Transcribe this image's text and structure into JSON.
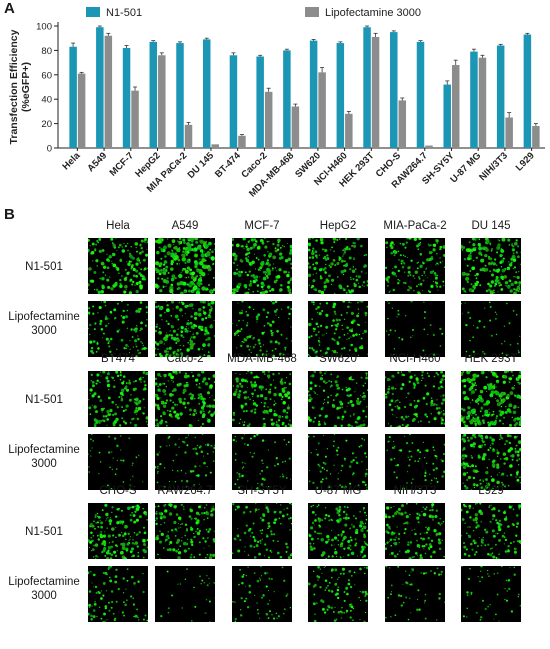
{
  "panel_a_label": "A",
  "panel_b_label": "B",
  "chart_data": {
    "type": "bar",
    "ylabel_line1": "Transfection Efficiency",
    "ylabel_line2": "(%eGFP+)",
    "ylim": [
      0,
      100
    ],
    "yticks": [
      0,
      20,
      40,
      60,
      80,
      100
    ],
    "legend_position": "top",
    "categories": [
      "Hela",
      "A549",
      "MCF-7",
      "HepG2",
      "MIA PaCa-2",
      "DU 145",
      "BT-474",
      "Caco-2",
      "MDA-MB-468",
      "SW620",
      "NCI-H460",
      "HEK 293T",
      "CHO-S",
      "RAW264.7",
      "SH-SY5Y",
      "U-87 MG",
      "NIH/3T3",
      "L929"
    ],
    "series": [
      {
        "name": "N1-501",
        "color": "#1b96b4",
        "values": [
          83,
          99,
          82,
          87,
          86,
          89,
          76,
          75,
          80,
          88,
          86,
          99,
          95,
          87,
          52,
          79,
          84,
          93
        ],
        "errors": [
          3,
          1,
          2,
          1,
          1,
          1,
          2,
          1,
          1,
          1,
          1,
          1,
          1,
          1,
          3,
          2,
          1,
          1
        ]
      },
      {
        "name": "Lipofectamine 3000",
        "color": "#8c8c8c",
        "values": [
          61,
          92,
          47,
          76,
          19,
          3,
          10,
          46,
          34,
          62,
          28,
          91,
          39,
          2,
          68,
          74,
          25,
          18
        ],
        "errors": [
          1,
          2,
          3,
          2,
          2,
          0,
          1,
          3,
          2,
          4,
          2,
          3,
          2,
          0,
          4,
          2,
          4,
          2
        ]
      }
    ]
  },
  "panel_b": {
    "row_labels": {
      "n1": "N1-501",
      "lipo_line1": "Lipofectamine",
      "lipo_line2": "3000"
    },
    "groups": [
      {
        "cells": [
          {
            "name": "Hela",
            "n1": 0.55,
            "lipo": 0.35
          },
          {
            "name": "A549",
            "n1": 0.85,
            "lipo": 0.6
          },
          {
            "name": "MCF-7",
            "n1": 0.6,
            "lipo": 0.3
          },
          {
            "name": "HepG2",
            "n1": 0.5,
            "lipo": 0.4
          },
          {
            "name": "MIA-PaCa-2",
            "n1": 0.45,
            "lipo": 0.05
          },
          {
            "name": "DU 145",
            "n1": 0.65,
            "lipo": 0.08
          }
        ]
      },
      {
        "cells": [
          {
            "name": "BT474",
            "n1": 0.5,
            "lipo": 0.08
          },
          {
            "name": "Caco-2",
            "n1": 0.55,
            "lipo": 0.2
          },
          {
            "name": "MDA-MB-468",
            "n1": 0.5,
            "lipo": 0.15
          },
          {
            "name": "SW620",
            "n1": 0.45,
            "lipo": 0.2
          },
          {
            "name": "NCI-H460",
            "n1": 0.4,
            "lipo": 0.18
          },
          {
            "name": "HEK 293T",
            "n1": 0.75,
            "lipo": 0.55
          }
        ]
      },
      {
        "cells": [
          {
            "name": "CHO-S",
            "n1": 0.55,
            "lipo": 0.25
          },
          {
            "name": "RAW264.7",
            "n1": 0.5,
            "lipo": 0.03
          },
          {
            "name": "SH-SY5Y",
            "n1": 0.3,
            "lipo": 0.15
          },
          {
            "name": "U-87 MG",
            "n1": 0.5,
            "lipo": 0.3
          },
          {
            "name": "NIH/3T3",
            "n1": 0.45,
            "lipo": 0.12
          },
          {
            "name": "L929",
            "n1": 0.4,
            "lipo": 0.1
          }
        ]
      }
    ]
  }
}
